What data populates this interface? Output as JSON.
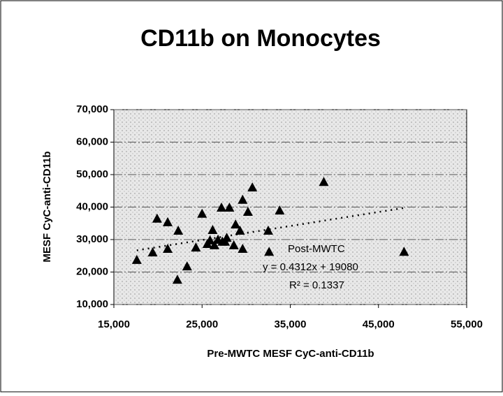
{
  "chart_data": {
    "type": "scatter",
    "title": "CD11b on Monocytes",
    "x_label": "Pre-MWTC MESF CyC-anti-CD11b",
    "y_label": "MESF CyC-anti-CD11b",
    "xlim": [
      15000,
      55000
    ],
    "xticks": [
      {
        "value": 15000,
        "label": "15,000"
      },
      {
        "value": 25000,
        "label": "25,000"
      },
      {
        "value": 35000,
        "label": "35,000"
      },
      {
        "value": 45000,
        "label": "45,000"
      },
      {
        "value": 55000,
        "label": "55,000"
      }
    ],
    "ylim": [
      10000,
      70000
    ],
    "yticks": [
      {
        "value": 10000,
        "label": "10,000"
      },
      {
        "value": 20000,
        "label": "20,000"
      },
      {
        "value": 30000,
        "label": "30,000"
      },
      {
        "value": 40000,
        "label": "40,000"
      },
      {
        "value": 50000,
        "label": "50,000"
      },
      {
        "value": 60000,
        "label": "60,000"
      },
      {
        "value": 70000,
        "label": "70,000"
      }
    ],
    "grid": true,
    "series": [
      {
        "name": "Post-MWTC",
        "color": "#000000",
        "x": [
          17600,
          19400,
          19900,
          21100,
          21100,
          22300,
          22200,
          23300,
          24300,
          25000,
          25600,
          25900,
          26200,
          26400,
          26800,
          27200,
          27300,
          27600,
          28100,
          27800,
          28600,
          28800,
          29300,
          29600,
          29600,
          30200,
          30700,
          32500,
          32600,
          33800,
          38800,
          47900
        ],
        "values": [
          23800,
          26100,
          36500,
          35400,
          27200,
          32800,
          17700,
          21800,
          27600,
          38000,
          28700,
          29800,
          33000,
          28300,
          30000,
          39900,
          29400,
          29400,
          39900,
          30600,
          28300,
          34700,
          32800,
          42300,
          27200,
          38600,
          46100,
          32800,
          26300,
          39000,
          47800,
          26300
        ]
      }
    ],
    "trendline": {
      "slope": 0.4312,
      "intercept": 19080,
      "equation": "y = 0.4312x + 19080",
      "r_squared": "R² = 0.1337"
    }
  }
}
